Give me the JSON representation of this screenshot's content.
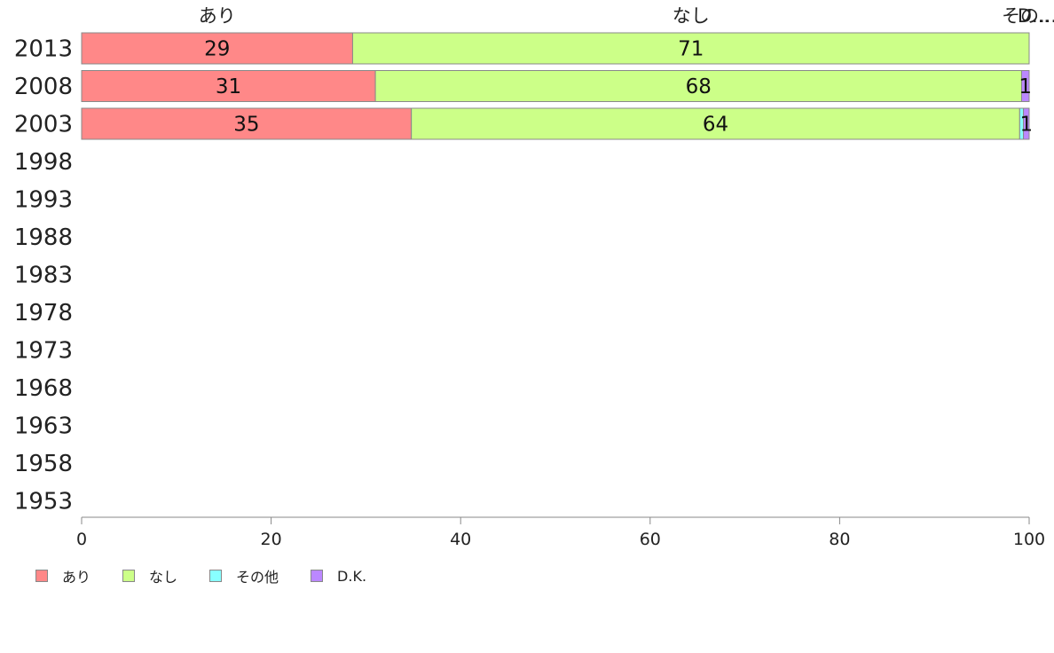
{
  "chart_data": {
    "type": "bar",
    "orientation": "horizontal",
    "stacked": true,
    "categories": [
      "2013",
      "2008",
      "2003",
      "1998",
      "1993",
      "1988",
      "1983",
      "1978",
      "1973",
      "1968",
      "1963",
      "1958",
      "1953"
    ],
    "series": [
      {
        "name": "あり",
        "color": "#ff8888",
        "values": [
          28.6,
          31,
          34.8,
          null,
          null,
          null,
          null,
          null,
          null,
          null,
          null,
          null,
          null
        ],
        "labels": [
          "29",
          "31",
          "35",
          "",
          "",
          "",
          "",
          "",
          "",
          "",
          "",
          "",
          ""
        ]
      },
      {
        "name": "なし",
        "color": "#ccff88",
        "values": [
          71.4,
          68.2,
          64.2,
          null,
          null,
          null,
          null,
          null,
          null,
          null,
          null,
          null,
          null
        ],
        "labels": [
          "71",
          "68",
          "64",
          "",
          "",
          "",
          "",
          "",
          "",
          "",
          "",
          "",
          ""
        ]
      },
      {
        "name": "その他",
        "color": "#88ffff",
        "values": [
          0,
          0,
          0.4,
          null,
          null,
          null,
          null,
          null,
          null,
          null,
          null,
          null,
          null
        ],
        "labels": [
          "",
          "",
          "",
          "",
          "",
          "",
          "",
          "",
          "",
          "",
          "",
          "",
          ""
        ]
      },
      {
        "name": "D.K.",
        "color": "#bb88ff",
        "values": [
          0,
          0.8,
          0.6,
          null,
          null,
          null,
          null,
          null,
          null,
          null,
          null,
          null,
          null
        ],
        "labels": [
          "",
          "1",
          "1",
          "",
          "",
          "",
          "",
          "",
          "",
          "",
          "",
          "",
          ""
        ]
      }
    ],
    "top_labels": [
      "あり",
      "なし",
      "その...",
      "D..."
    ],
    "xlim": [
      0,
      100
    ],
    "xticks": [
      0,
      20,
      40,
      60,
      80,
      100
    ],
    "grid": false,
    "legend_position": "bottom-left"
  }
}
